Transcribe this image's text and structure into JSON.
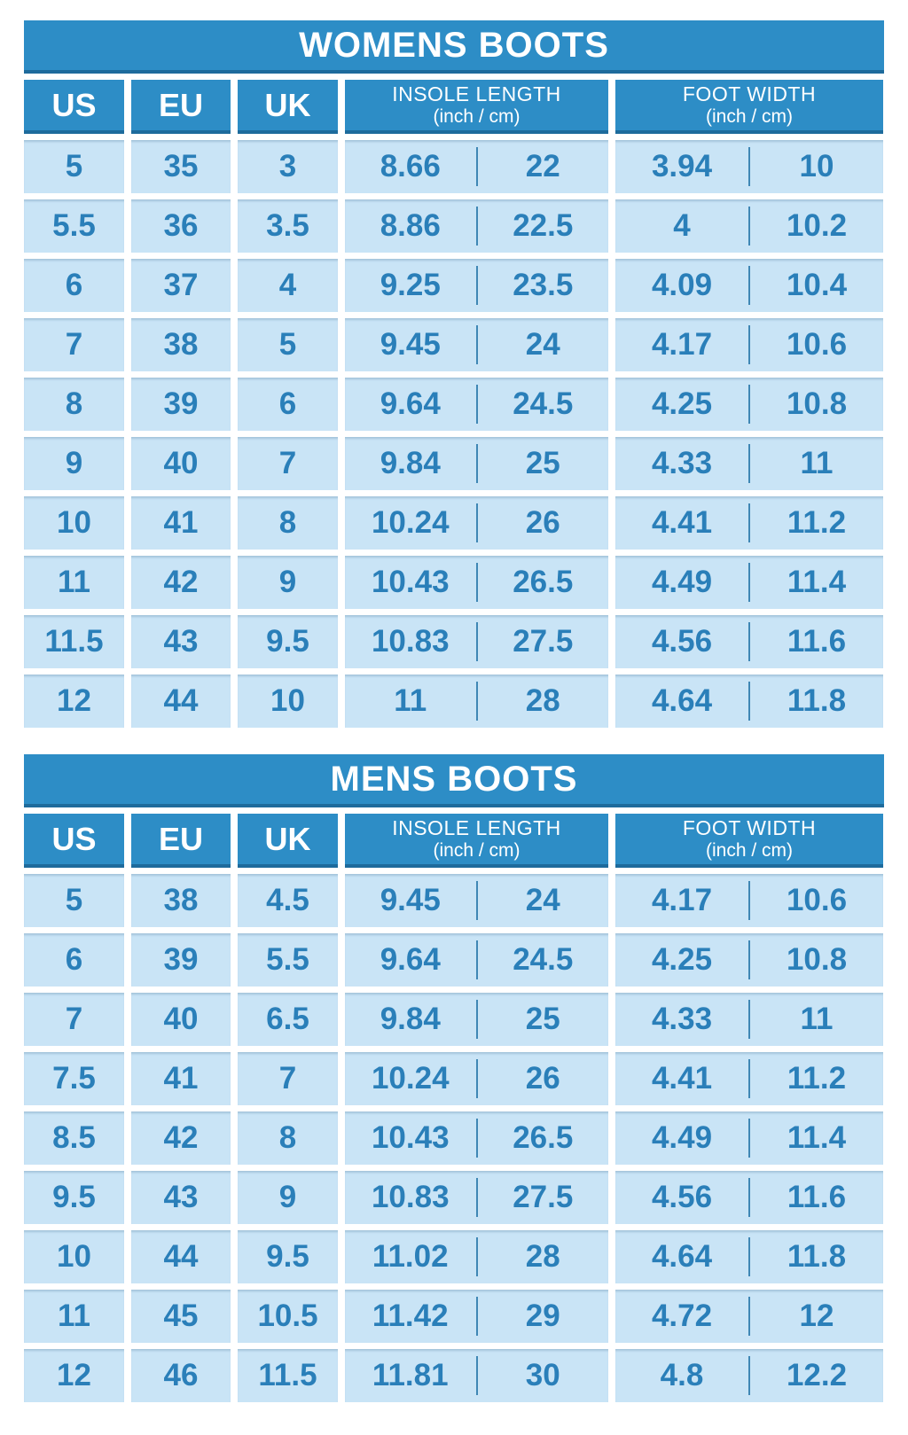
{
  "colors": {
    "banner_blue": "#2d8dc6",
    "banner_edge_blue": "#1e6b9c",
    "cell_light_blue": "#c9e4f6",
    "number_text_blue": "#2a7fb9",
    "divider_blue": "#3f87b5",
    "background": "#ffffff",
    "header_text": "#ffffff"
  },
  "chart_data": [
    {
      "type": "table",
      "title": "WOMENS BOOTS",
      "columns": [
        "US",
        "EU",
        "UK",
        "INSOLE LENGTH (inch)",
        "INSOLE LENGTH (cm)",
        "FOOT WIDTH (inch)",
        "FOOT WIDTH (cm)"
      ],
      "headers": {
        "us": "US",
        "eu": "EU",
        "uk": "UK",
        "insole_title": "INSOLE LENGTH",
        "insole_sub": "(inch / cm)",
        "foot_title": "FOOT WIDTH",
        "foot_sub": "(inch / cm)"
      },
      "rows": [
        {
          "us": "5",
          "eu": "35",
          "uk": "3",
          "insole_in": "8.66",
          "insole_cm": "22",
          "width_in": "3.94",
          "width_cm": "10"
        },
        {
          "us": "5.5",
          "eu": "36",
          "uk": "3.5",
          "insole_in": "8.86",
          "insole_cm": "22.5",
          "width_in": "4",
          "width_cm": "10.2"
        },
        {
          "us": "6",
          "eu": "37",
          "uk": "4",
          "insole_in": "9.25",
          "insole_cm": "23.5",
          "width_in": "4.09",
          "width_cm": "10.4"
        },
        {
          "us": "7",
          "eu": "38",
          "uk": "5",
          "insole_in": "9.45",
          "insole_cm": "24",
          "width_in": "4.17",
          "width_cm": "10.6"
        },
        {
          "us": "8",
          "eu": "39",
          "uk": "6",
          "insole_in": "9.64",
          "insole_cm": "24.5",
          "width_in": "4.25",
          "width_cm": "10.8"
        },
        {
          "us": "9",
          "eu": "40",
          "uk": "7",
          "insole_in": "9.84",
          "insole_cm": "25",
          "width_in": "4.33",
          "width_cm": "11"
        },
        {
          "us": "10",
          "eu": "41",
          "uk": "8",
          "insole_in": "10.24",
          "insole_cm": "26",
          "width_in": "4.41",
          "width_cm": "11.2"
        },
        {
          "us": "11",
          "eu": "42",
          "uk": "9",
          "insole_in": "10.43",
          "insole_cm": "26.5",
          "width_in": "4.49",
          "width_cm": "11.4"
        },
        {
          "us": "11.5",
          "eu": "43",
          "uk": "9.5",
          "insole_in": "10.83",
          "insole_cm": "27.5",
          "width_in": "4.56",
          "width_cm": "11.6"
        },
        {
          "us": "12",
          "eu": "44",
          "uk": "10",
          "insole_in": "11",
          "insole_cm": "28",
          "width_in": "4.64",
          "width_cm": "11.8"
        }
      ]
    },
    {
      "type": "table",
      "title": "MENS BOOTS",
      "columns": [
        "US",
        "EU",
        "UK",
        "INSOLE LENGTH (inch)",
        "INSOLE LENGTH (cm)",
        "FOOT WIDTH (inch)",
        "FOOT WIDTH (cm)"
      ],
      "headers": {
        "us": "US",
        "eu": "EU",
        "uk": "UK",
        "insole_title": "INSOLE LENGTH",
        "insole_sub": "(inch / cm)",
        "foot_title": "FOOT WIDTH",
        "foot_sub": "(inch / cm)"
      },
      "rows": [
        {
          "us": "5",
          "eu": "38",
          "uk": "4.5",
          "insole_in": "9.45",
          "insole_cm": "24",
          "width_in": "4.17",
          "width_cm": "10.6"
        },
        {
          "us": "6",
          "eu": "39",
          "uk": "5.5",
          "insole_in": "9.64",
          "insole_cm": "24.5",
          "width_in": "4.25",
          "width_cm": "10.8"
        },
        {
          "us": "7",
          "eu": "40",
          "uk": "6.5",
          "insole_in": "9.84",
          "insole_cm": "25",
          "width_in": "4.33",
          "width_cm": "11"
        },
        {
          "us": "7.5",
          "eu": "41",
          "uk": "7",
          "insole_in": "10.24",
          "insole_cm": "26",
          "width_in": "4.41",
          "width_cm": "11.2"
        },
        {
          "us": "8.5",
          "eu": "42",
          "uk": "8",
          "insole_in": "10.43",
          "insole_cm": "26.5",
          "width_in": "4.49",
          "width_cm": "11.4"
        },
        {
          "us": "9.5",
          "eu": "43",
          "uk": "9",
          "insole_in": "10.83",
          "insole_cm": "27.5",
          "width_in": "4.56",
          "width_cm": "11.6"
        },
        {
          "us": "10",
          "eu": "44",
          "uk": "9.5",
          "insole_in": "11.02",
          "insole_cm": "28",
          "width_in": "4.64",
          "width_cm": "11.8"
        },
        {
          "us": "11",
          "eu": "45",
          "uk": "10.5",
          "insole_in": "11.42",
          "insole_cm": "29",
          "width_in": "4.72",
          "width_cm": "12"
        },
        {
          "us": "12",
          "eu": "46",
          "uk": "11.5",
          "insole_in": "11.81",
          "insole_cm": "30",
          "width_in": "4.8",
          "width_cm": "12.2"
        }
      ]
    }
  ]
}
